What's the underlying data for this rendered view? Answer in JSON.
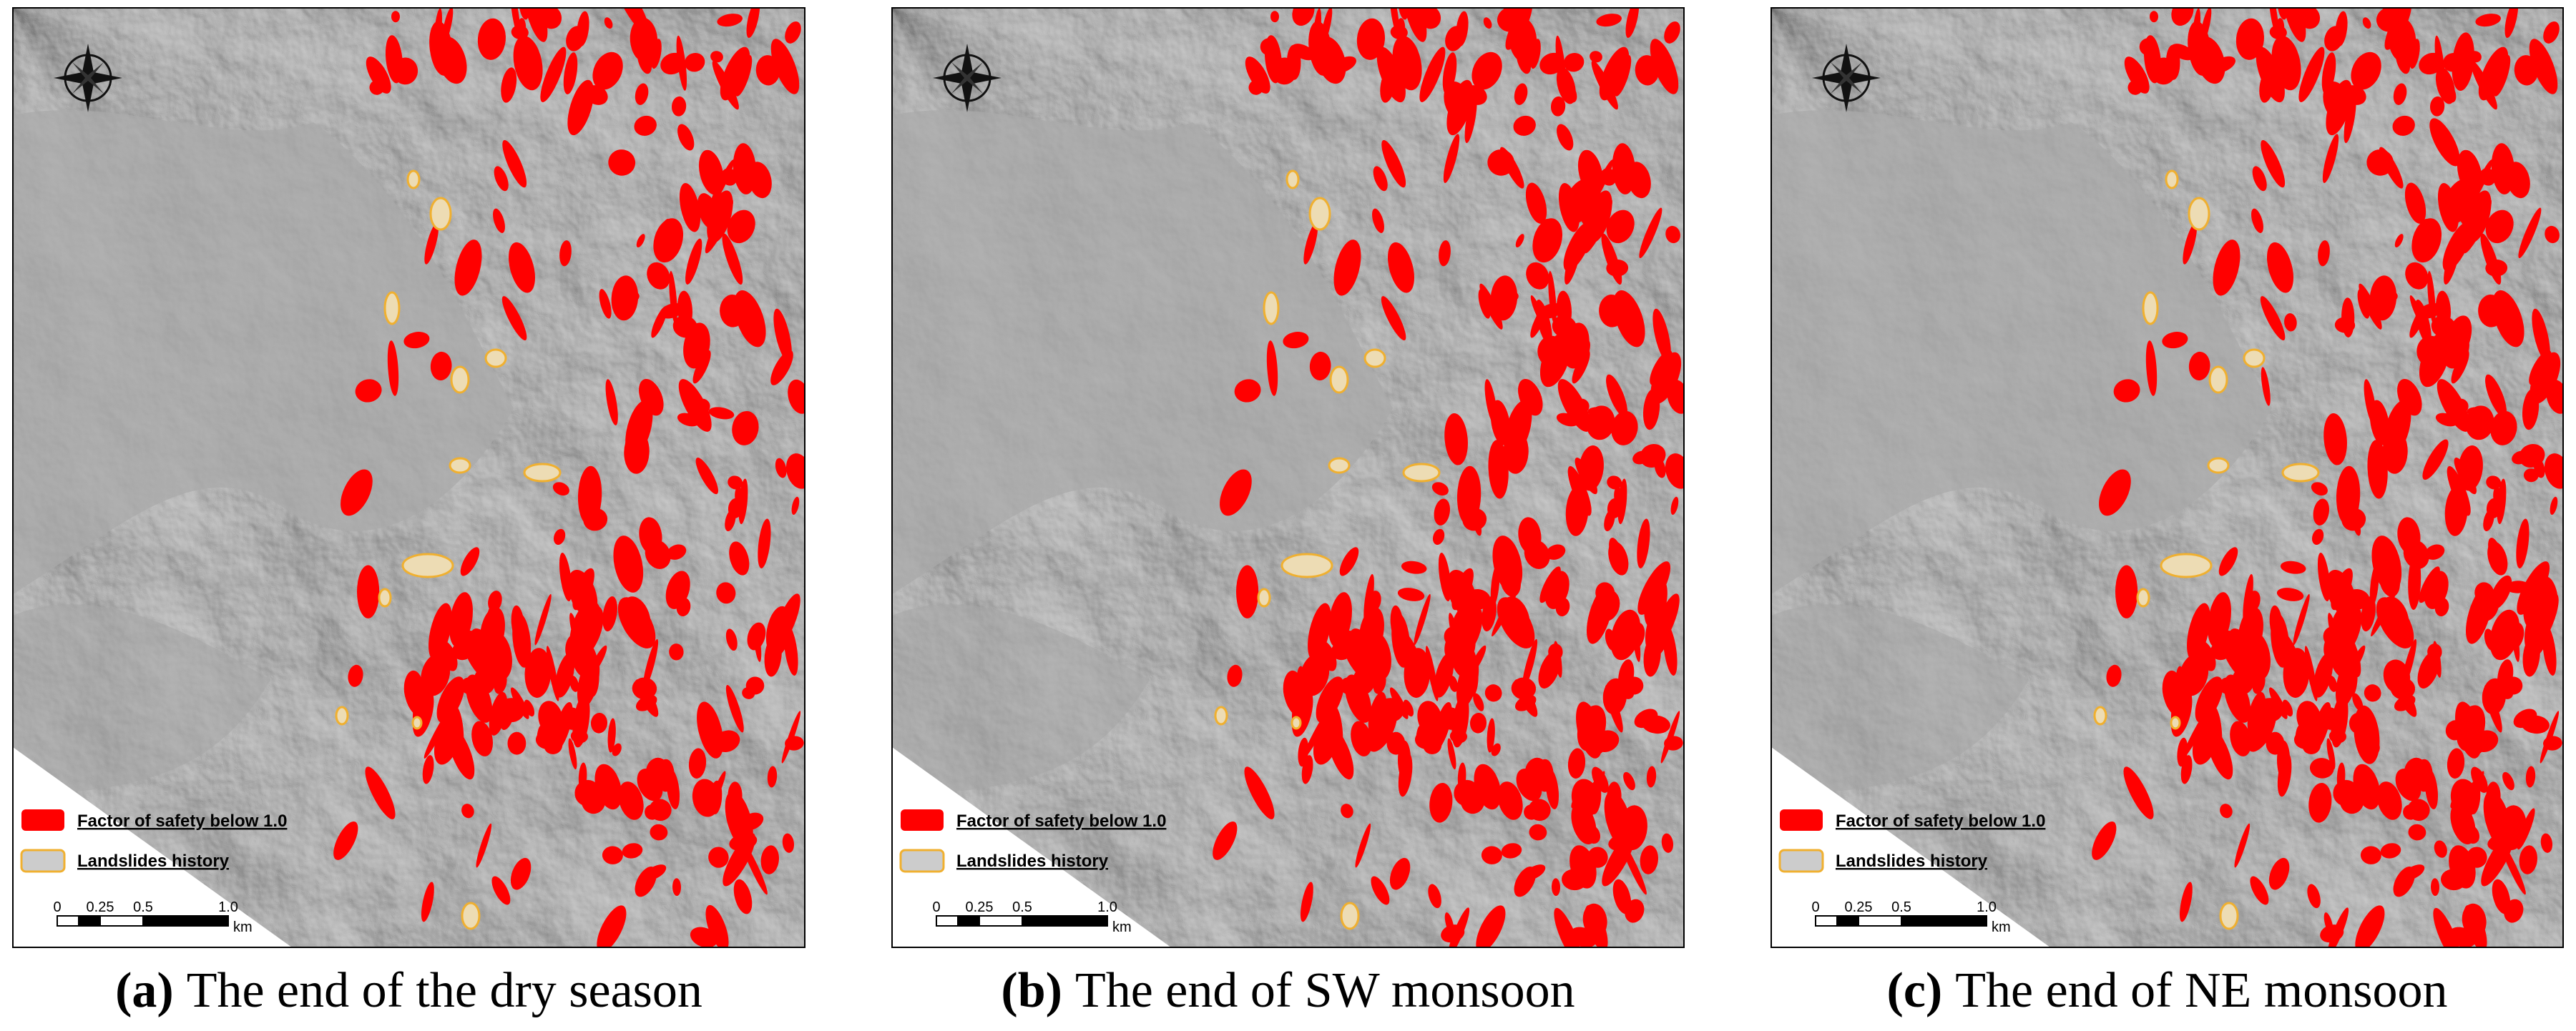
{
  "panels": [
    {
      "tag": "(a)",
      "caption": "The end of the dry season",
      "legend": [
        {
          "label": "Factor of safety below 1.0"
        },
        {
          "label": "Landslides history"
        }
      ],
      "scale": {
        "ticks": [
          "0",
          "0.25",
          "0.5",
          "1.0"
        ],
        "unit": "km"
      }
    },
    {
      "tag": "(b)",
      "caption": "The end of SW monsoon",
      "legend": [
        {
          "label": "Factor of safety below 1.0"
        },
        {
          "label": "Landslides history"
        }
      ],
      "scale": {
        "ticks": [
          "0",
          "0.25",
          "0.5",
          "1.0"
        ],
        "unit": "km"
      }
    },
    {
      "tag": "(c)",
      "caption": "The end of NE monsoon",
      "legend": [
        {
          "label": "Factor of safety below 1.0"
        },
        {
          "label": "Landslides history"
        }
      ],
      "scale": {
        "ticks": [
          "0",
          "0.25",
          "0.5",
          "1.0"
        ],
        "unit": "km"
      }
    }
  ]
}
